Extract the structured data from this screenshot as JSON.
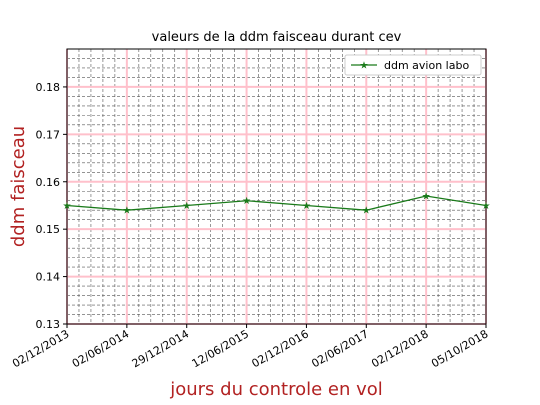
{
  "chart_data": {
    "type": "line",
    "title": "valeurs de la ddm faisceau durant cev",
    "xlabel": "jours du controle en vol",
    "ylabel": "ddm faisceau",
    "x_tick_labels": [
      "02/12/2013",
      "02/06/2014",
      "29/12/2014",
      "12/06/2015",
      "02/12/2016",
      "02/06/2017",
      "02/12/2018",
      "05/10/2018"
    ],
    "ylim": [
      0.13,
      0.188
    ],
    "y_ticks": [
      0.13,
      0.14,
      0.15,
      0.16,
      0.17,
      0.18
    ],
    "y_tick_labels": [
      "0.13",
      "0.14",
      "0.15",
      "0.16",
      "0.17",
      "0.18"
    ],
    "series": [
      {
        "name": "ddm avion labo",
        "values": [
          0.155,
          0.154,
          0.155,
          0.156,
          0.155,
          0.154,
          0.157,
          0.155
        ],
        "color": "#1a7a1a"
      }
    ],
    "grid": true,
    "major_grid_color": "#ffc0cb",
    "minor_grid_color": "#555555",
    "legend_position": "top-right"
  }
}
